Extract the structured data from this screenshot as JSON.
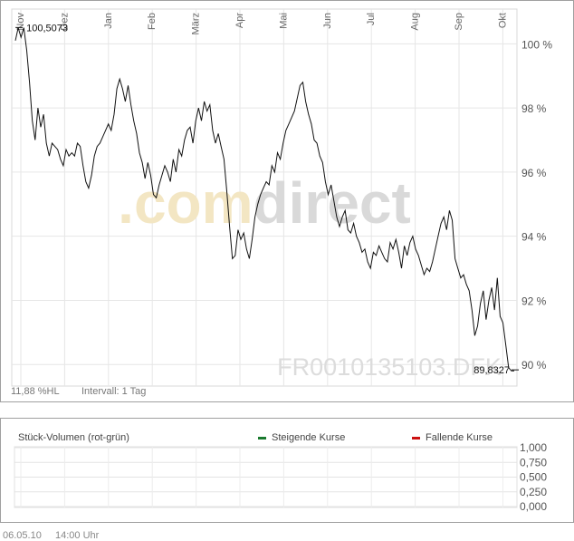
{
  "chart_data": [
    {
      "type": "line",
      "ylim": [
        89.3,
        100.8
      ],
      "yticks": [
        90,
        92,
        94,
        96,
        98,
        100
      ],
      "ytick_labels": [
        "90 %",
        "92 %",
        "94 %",
        "96 %",
        "98 %",
        "100 %"
      ],
      "months": [
        "Nov",
        "Dez",
        "Jan",
        "Feb",
        "März",
        "Apr",
        "Mai",
        "Jun",
        "Jul",
        "Aug",
        "Sep",
        "Okt"
      ],
      "grid": true,
      "series": [
        {
          "values": [
            100.1,
            100.5,
            100.2,
            100.5,
            99.8,
            98.8,
            97.6,
            97.0,
            98.0,
            97.4,
            97.8,
            96.9,
            96.5,
            96.9,
            96.8,
            96.7,
            96.4,
            96.2,
            96.7,
            96.5,
            96.6,
            96.5,
            96.9,
            96.8,
            96.2,
            95.7,
            95.5,
            95.9,
            96.5,
            96.8,
            96.9,
            97.1,
            97.3,
            97.5,
            97.3,
            97.8,
            98.6,
            98.9,
            98.6,
            98.2,
            98.7,
            98.1,
            97.6,
            97.2,
            96.6,
            96.3,
            95.8,
            96.3,
            95.9,
            95.3,
            95.2,
            95.6,
            95.9,
            96.2,
            96.0,
            95.7,
            96.4,
            96.0,
            96.7,
            96.5,
            97.0,
            97.3,
            97.4,
            96.9,
            97.6,
            98.0,
            97.6,
            98.2,
            97.9,
            98.1,
            97.3,
            96.9,
            97.2,
            96.8,
            96.4,
            95.4,
            94.3,
            93.3,
            93.4,
            94.2,
            93.9,
            94.1,
            93.6,
            93.3,
            93.9,
            94.6,
            95.0,
            95.3,
            95.5,
            95.7,
            95.6,
            96.2,
            96.0,
            96.6,
            96.4,
            96.9,
            97.3,
            97.5,
            97.7,
            97.9,
            98.3,
            98.7,
            98.8,
            98.2,
            97.8,
            97.5,
            97.0,
            96.9,
            96.5,
            96.3,
            95.7,
            95.3,
            95.6,
            95.1,
            94.6,
            94.3,
            94.6,
            94.8,
            94.2,
            94.1,
            94.4,
            94.0,
            93.8,
            93.5,
            93.6,
            93.2,
            93.0,
            93.5,
            93.4,
            93.7,
            93.5,
            93.3,
            93.2,
            93.8,
            93.6,
            93.9,
            93.5,
            93.0,
            93.7,
            93.4,
            93.8,
            94.0,
            93.6,
            93.4,
            93.1,
            92.8,
            93.0,
            92.9,
            93.2,
            93.6,
            94.0,
            94.4,
            94.6,
            94.2,
            94.8,
            94.5,
            93.3,
            93.0,
            92.7,
            92.8,
            92.5,
            92.3,
            91.7,
            90.9,
            91.2,
            91.9,
            92.3,
            91.4,
            92.0,
            92.4,
            91.7,
            92.7,
            91.5,
            91.3,
            90.6,
            89.9,
            89.8,
            89.8
          ]
        }
      ],
      "annotations": [
        {
          "text": "100,5073",
          "x_index": 1,
          "y": 100.5073
        },
        {
          "text": "89,8327",
          "x_index": 177,
          "y": 89.8327
        }
      ],
      "watermark_logo": ".comdirect",
      "watermark_isin": "FR0010135103.DFK",
      "footer_left": "11,88 %HL",
      "footer_interval": "Intervall: 1 Tag"
    },
    {
      "type": "bar",
      "title": "Stück-Volumen (rot-grün)",
      "legend": [
        {
          "name": "Steigende Kurse",
          "color": "#1a7a2e"
        },
        {
          "name": "Fallende Kurse",
          "color": "#cc1111"
        }
      ],
      "legend_position": "top-right",
      "ylim": [
        0,
        1
      ],
      "yticks": [
        0,
        0.25,
        0.5,
        0.75,
        1.0
      ],
      "ytick_labels": [
        "0,000",
        "0,250",
        "0,500",
        "0,750",
        "1,000"
      ],
      "values": []
    }
  ],
  "footer": {
    "date": "06.05.10",
    "time": "14:00 Uhr"
  }
}
